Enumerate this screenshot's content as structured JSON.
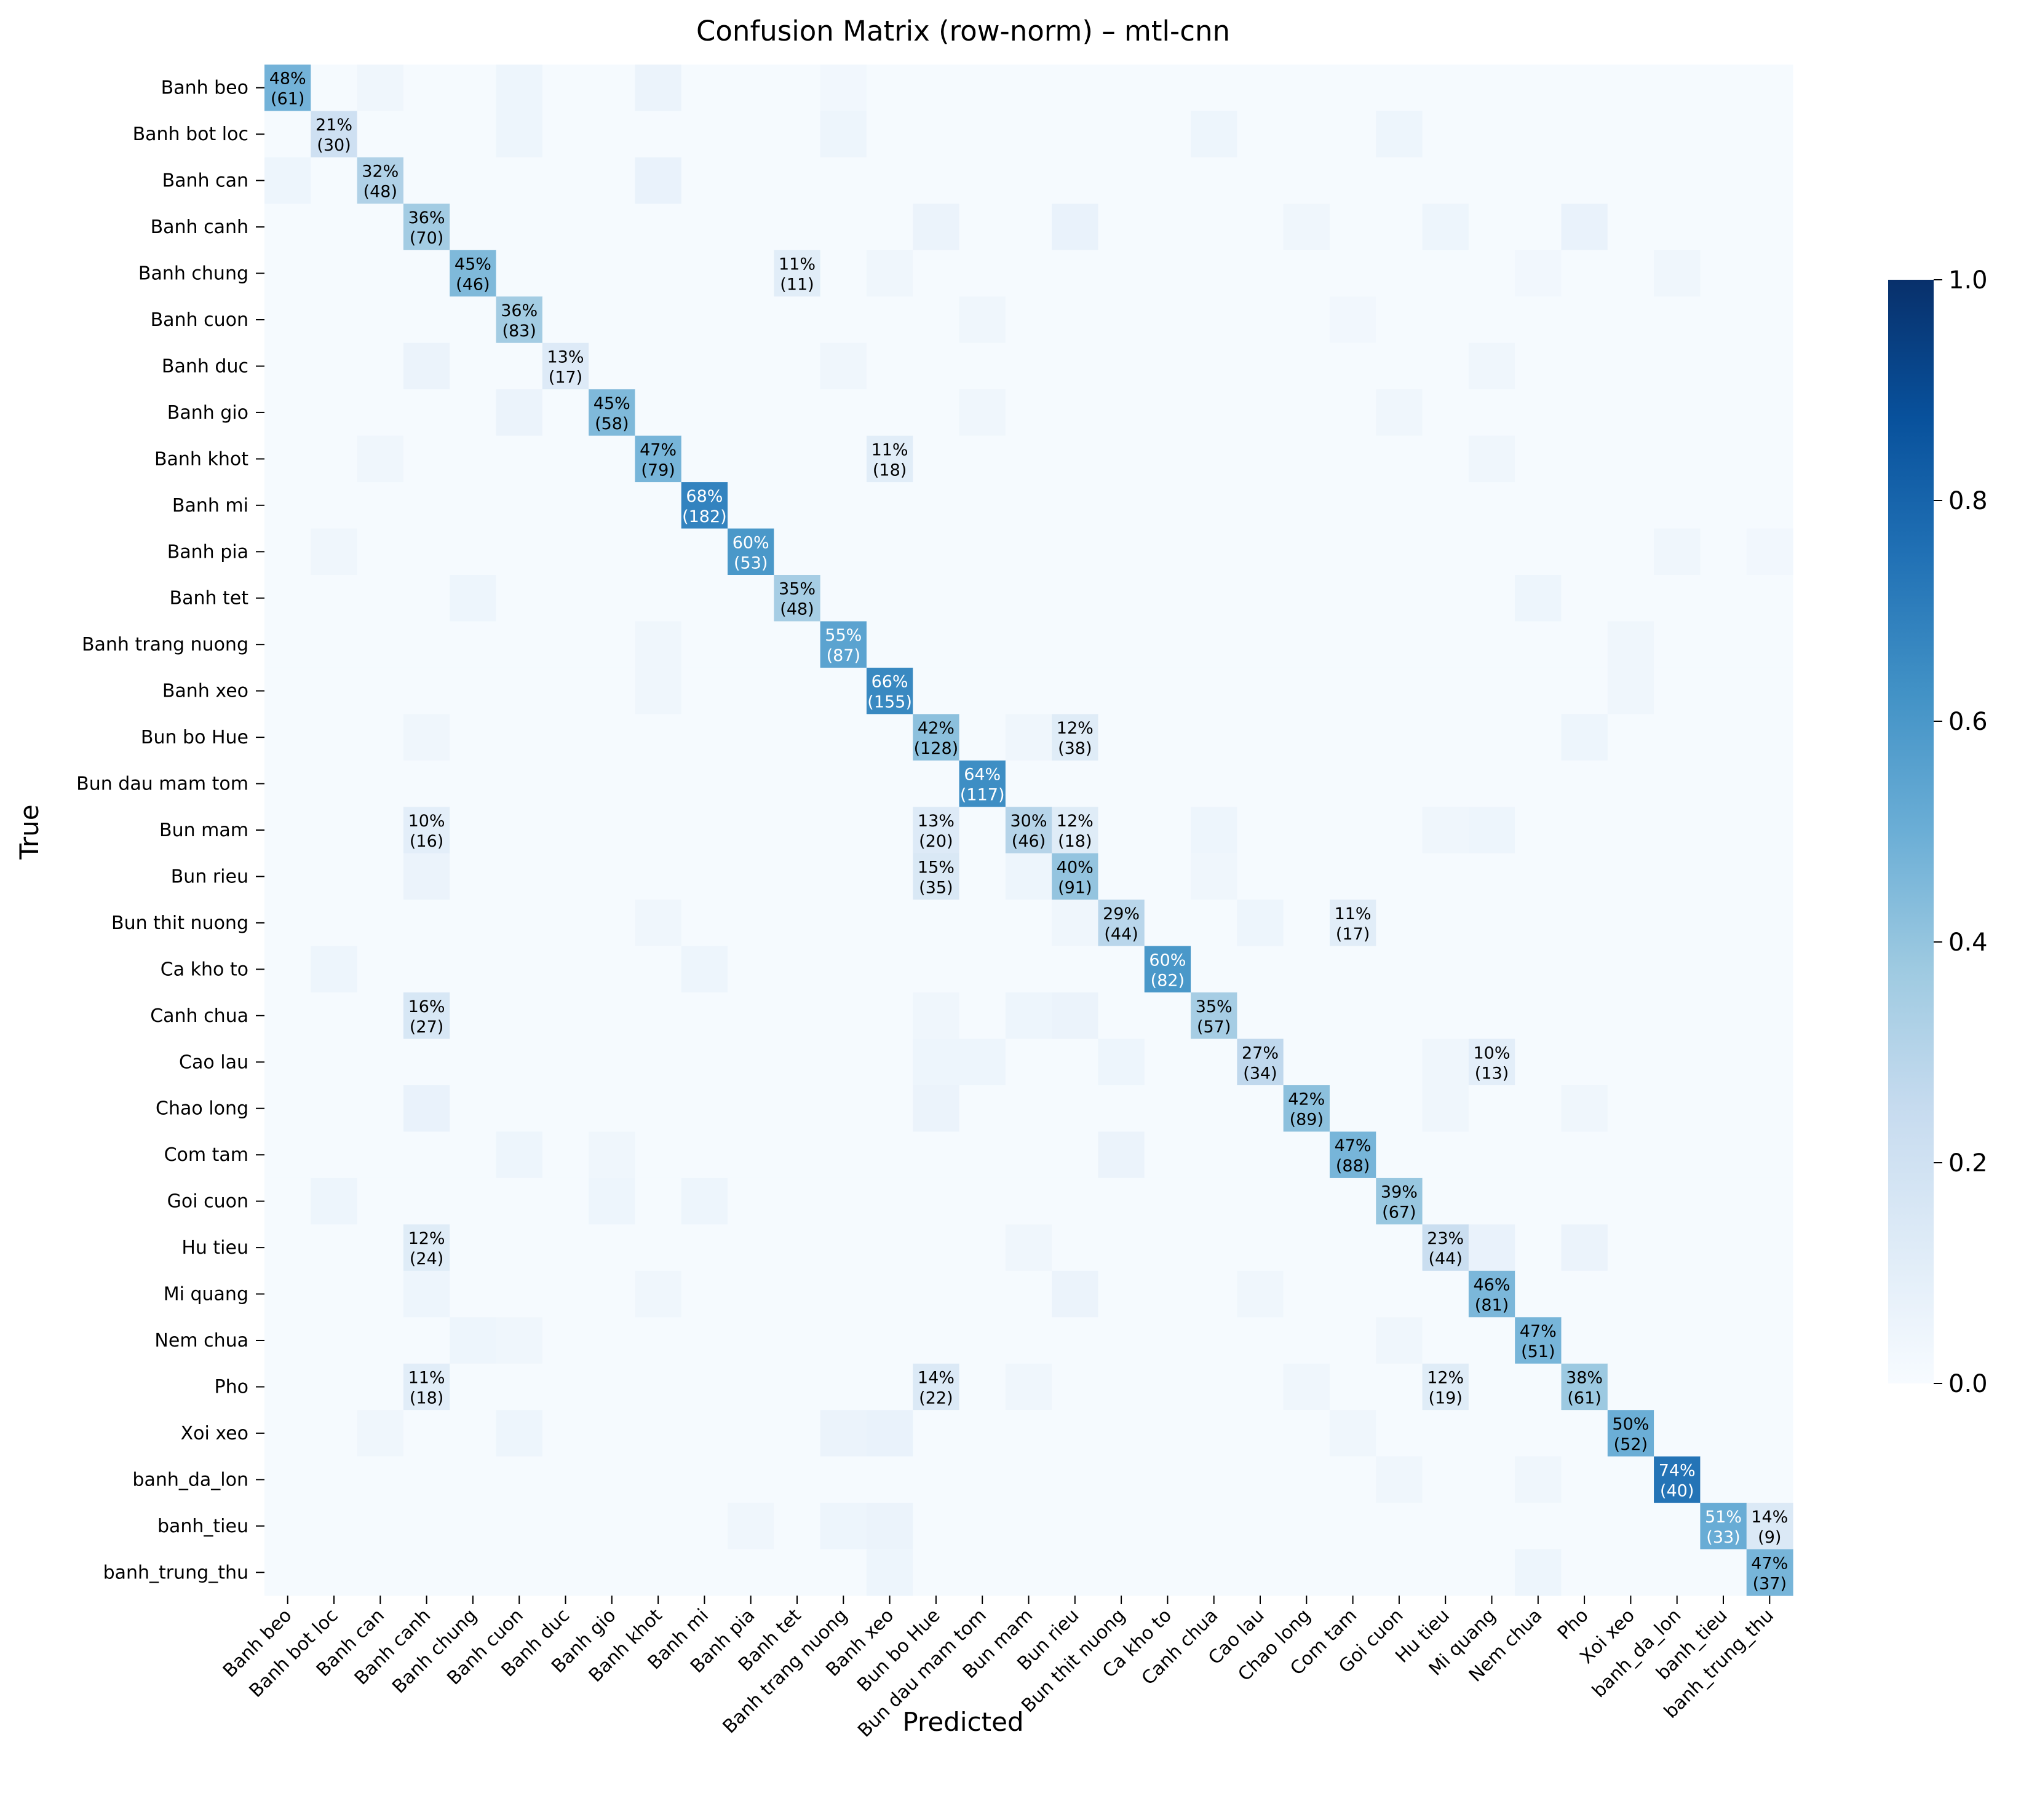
{
  "chart_data": {
    "type": "heatmap",
    "title": "Confusion Matrix (row-norm) – mtl-cnn",
    "xlabel": "Predicted",
    "ylabel": "True",
    "labels": [
      "Banh beo",
      "Banh bot loc",
      "Banh can",
      "Banh canh",
      "Banh chung",
      "Banh cuon",
      "Banh duc",
      "Banh gio",
      "Banh khot",
      "Banh mi",
      "Banh pia",
      "Banh tet",
      "Banh trang nuong",
      "Banh xeo",
      "Bun bo Hue",
      "Bun dau mam tom",
      "Bun mam",
      "Bun rieu",
      "Bun thit nuong",
      "Ca kho to",
      "Canh chua",
      "Cao lau",
      "Chao long",
      "Com tam",
      "Goi cuon",
      "Hu tieu",
      "Mi quang",
      "Nem chua",
      "Pho",
      "Xoi xeo",
      "banh_da_lon",
      "banh_tieu",
      "banh_trung_thu"
    ],
    "colorbar": {
      "colormap": "Blues",
      "min": 0.0,
      "max": 1.0,
      "ticks": [
        "0.0",
        "0.2",
        "0.4",
        "0.6",
        "0.8",
        "1.0"
      ]
    },
    "base_value": 0.01,
    "annotations": [
      {
        "row": 0,
        "col": 0,
        "pct": "48%",
        "count": "(61)",
        "value": 0.48
      },
      {
        "row": 1,
        "col": 1,
        "pct": "21%",
        "count": "(30)",
        "value": 0.21
      },
      {
        "row": 2,
        "col": 2,
        "pct": "32%",
        "count": "(48)",
        "value": 0.32
      },
      {
        "row": 3,
        "col": 3,
        "pct": "36%",
        "count": "(70)",
        "value": 0.36
      },
      {
        "row": 4,
        "col": 4,
        "pct": "45%",
        "count": "(46)",
        "value": 0.45
      },
      {
        "row": 4,
        "col": 11,
        "pct": "11%",
        "count": "(11)",
        "value": 0.11
      },
      {
        "row": 5,
        "col": 5,
        "pct": "36%",
        "count": "(83)",
        "value": 0.36
      },
      {
        "row": 6,
        "col": 6,
        "pct": "13%",
        "count": "(17)",
        "value": 0.13
      },
      {
        "row": 7,
        "col": 7,
        "pct": "45%",
        "count": "(58)",
        "value": 0.45
      },
      {
        "row": 8,
        "col": 8,
        "pct": "47%",
        "count": "(79)",
        "value": 0.47
      },
      {
        "row": 8,
        "col": 13,
        "pct": "11%",
        "count": "(18)",
        "value": 0.11
      },
      {
        "row": 9,
        "col": 9,
        "pct": "68%",
        "count": "(182)",
        "value": 0.68
      },
      {
        "row": 10,
        "col": 10,
        "pct": "60%",
        "count": "(53)",
        "value": 0.6
      },
      {
        "row": 11,
        "col": 11,
        "pct": "35%",
        "count": "(48)",
        "value": 0.35
      },
      {
        "row": 12,
        "col": 12,
        "pct": "55%",
        "count": "(87)",
        "value": 0.55
      },
      {
        "row": 13,
        "col": 13,
        "pct": "66%",
        "count": "(155)",
        "value": 0.66
      },
      {
        "row": 14,
        "col": 14,
        "pct": "42%",
        "count": "(128)",
        "value": 0.42
      },
      {
        "row": 14,
        "col": 17,
        "pct": "12%",
        "count": "(38)",
        "value": 0.12
      },
      {
        "row": 15,
        "col": 15,
        "pct": "64%",
        "count": "(117)",
        "value": 0.64
      },
      {
        "row": 16,
        "col": 3,
        "pct": "10%",
        "count": "(16)",
        "value": 0.1
      },
      {
        "row": 16,
        "col": 14,
        "pct": "13%",
        "count": "(20)",
        "value": 0.13
      },
      {
        "row": 16,
        "col": 16,
        "pct": "30%",
        "count": "(46)",
        "value": 0.3
      },
      {
        "row": 16,
        "col": 17,
        "pct": "12%",
        "count": "(18)",
        "value": 0.12
      },
      {
        "row": 17,
        "col": 14,
        "pct": "15%",
        "count": "(35)",
        "value": 0.15
      },
      {
        "row": 17,
        "col": 17,
        "pct": "40%",
        "count": "(91)",
        "value": 0.4
      },
      {
        "row": 18,
        "col": 18,
        "pct": "29%",
        "count": "(44)",
        "value": 0.29
      },
      {
        "row": 18,
        "col": 23,
        "pct": "11%",
        "count": "(17)",
        "value": 0.11
      },
      {
        "row": 19,
        "col": 19,
        "pct": "60%",
        "count": "(82)",
        "value": 0.6
      },
      {
        "row": 20,
        "col": 3,
        "pct": "16%",
        "count": "(27)",
        "value": 0.16
      },
      {
        "row": 20,
        "col": 20,
        "pct": "35%",
        "count": "(57)",
        "value": 0.35
      },
      {
        "row": 21,
        "col": 21,
        "pct": "27%",
        "count": "(34)",
        "value": 0.27
      },
      {
        "row": 21,
        "col": 26,
        "pct": "10%",
        "count": "(13)",
        "value": 0.1
      },
      {
        "row": 22,
        "col": 22,
        "pct": "42%",
        "count": "(89)",
        "value": 0.42
      },
      {
        "row": 23,
        "col": 23,
        "pct": "47%",
        "count": "(88)",
        "value": 0.47
      },
      {
        "row": 24,
        "col": 24,
        "pct": "39%",
        "count": "(67)",
        "value": 0.39
      },
      {
        "row": 25,
        "col": 3,
        "pct": "12%",
        "count": "(24)",
        "value": 0.12
      },
      {
        "row": 25,
        "col": 25,
        "pct": "23%",
        "count": "(44)",
        "value": 0.23
      },
      {
        "row": 26,
        "col": 26,
        "pct": "46%",
        "count": "(81)",
        "value": 0.46
      },
      {
        "row": 27,
        "col": 27,
        "pct": "47%",
        "count": "(51)",
        "value": 0.47
      },
      {
        "row": 28,
        "col": 3,
        "pct": "11%",
        "count": "(18)",
        "value": 0.11
      },
      {
        "row": 28,
        "col": 14,
        "pct": "14%",
        "count": "(22)",
        "value": 0.14
      },
      {
        "row": 28,
        "col": 25,
        "pct": "12%",
        "count": "(19)",
        "value": 0.12
      },
      {
        "row": 28,
        "col": 28,
        "pct": "38%",
        "count": "(61)",
        "value": 0.38
      },
      {
        "row": 29,
        "col": 29,
        "pct": "50%",
        "count": "(52)",
        "value": 0.5
      },
      {
        "row": 30,
        "col": 30,
        "pct": "74%",
        "count": "(40)",
        "value": 0.74
      },
      {
        "row": 31,
        "col": 31,
        "pct": "51%",
        "count": "(33)",
        "value": 0.51
      },
      {
        "row": 31,
        "col": 32,
        "pct": "14%",
        "count": "(9)",
        "value": 0.14
      },
      {
        "row": 32,
        "col": 32,
        "pct": "47%",
        "count": "(37)",
        "value": 0.47
      }
    ],
    "faint_cells": [
      {
        "row": 0,
        "col": 2,
        "value": 0.04
      },
      {
        "row": 0,
        "col": 5,
        "value": 0.05
      },
      {
        "row": 0,
        "col": 8,
        "value": 0.06
      },
      {
        "row": 0,
        "col": 12,
        "value": 0.03
      },
      {
        "row": 1,
        "col": 5,
        "value": 0.05
      },
      {
        "row": 1,
        "col": 12,
        "value": 0.05
      },
      {
        "row": 1,
        "col": 20,
        "value": 0.05
      },
      {
        "row": 1,
        "col": 24,
        "value": 0.05
      },
      {
        "row": 2,
        "col": 0,
        "value": 0.05
      },
      {
        "row": 2,
        "col": 8,
        "value": 0.07
      },
      {
        "row": 3,
        "col": 14,
        "value": 0.06
      },
      {
        "row": 3,
        "col": 17,
        "value": 0.07
      },
      {
        "row": 3,
        "col": 22,
        "value": 0.04
      },
      {
        "row": 3,
        "col": 25,
        "value": 0.05
      },
      {
        "row": 3,
        "col": 28,
        "value": 0.07
      },
      {
        "row": 4,
        "col": 13,
        "value": 0.04
      },
      {
        "row": 4,
        "col": 27,
        "value": 0.03
      },
      {
        "row": 4,
        "col": 30,
        "value": 0.04
      },
      {
        "row": 5,
        "col": 15,
        "value": 0.04
      },
      {
        "row": 5,
        "col": 23,
        "value": 0.03
      },
      {
        "row": 6,
        "col": 3,
        "value": 0.06
      },
      {
        "row": 6,
        "col": 12,
        "value": 0.04
      },
      {
        "row": 6,
        "col": 26,
        "value": 0.04
      },
      {
        "row": 7,
        "col": 5,
        "value": 0.06
      },
      {
        "row": 7,
        "col": 15,
        "value": 0.04
      },
      {
        "row": 7,
        "col": 24,
        "value": 0.04
      },
      {
        "row": 8,
        "col": 2,
        "value": 0.04
      },
      {
        "row": 8,
        "col": 26,
        "value": 0.04
      },
      {
        "row": 10,
        "col": 1,
        "value": 0.04
      },
      {
        "row": 10,
        "col": 30,
        "value": 0.04
      },
      {
        "row": 10,
        "col": 32,
        "value": 0.03
      },
      {
        "row": 11,
        "col": 4,
        "value": 0.05
      },
      {
        "row": 11,
        "col": 27,
        "value": 0.05
      },
      {
        "row": 12,
        "col": 8,
        "value": 0.04
      },
      {
        "row": 12,
        "col": 29,
        "value": 0.04
      },
      {
        "row": 13,
        "col": 8,
        "value": 0.04
      },
      {
        "row": 13,
        "col": 29,
        "value": 0.04
      },
      {
        "row": 14,
        "col": 3,
        "value": 0.04
      },
      {
        "row": 14,
        "col": 16,
        "value": 0.04
      },
      {
        "row": 14,
        "col": 28,
        "value": 0.05
      },
      {
        "row": 16,
        "col": 20,
        "value": 0.05
      },
      {
        "row": 16,
        "col": 25,
        "value": 0.04
      },
      {
        "row": 16,
        "col": 26,
        "value": 0.05
      },
      {
        "row": 17,
        "col": 3,
        "value": 0.06
      },
      {
        "row": 17,
        "col": 16,
        "value": 0.05
      },
      {
        "row": 17,
        "col": 20,
        "value": 0.04
      },
      {
        "row": 18,
        "col": 8,
        "value": 0.04
      },
      {
        "row": 18,
        "col": 17,
        "value": 0.04
      },
      {
        "row": 18,
        "col": 21,
        "value": 0.05
      },
      {
        "row": 19,
        "col": 1,
        "value": 0.05
      },
      {
        "row": 19,
        "col": 9,
        "value": 0.05
      },
      {
        "row": 20,
        "col": 14,
        "value": 0.04
      },
      {
        "row": 20,
        "col": 16,
        "value": 0.05
      },
      {
        "row": 20,
        "col": 17,
        "value": 0.06
      },
      {
        "row": 21,
        "col": 14,
        "value": 0.05
      },
      {
        "row": 21,
        "col": 15,
        "value": 0.05
      },
      {
        "row": 21,
        "col": 18,
        "value": 0.05
      },
      {
        "row": 21,
        "col": 25,
        "value": 0.04
      },
      {
        "row": 22,
        "col": 3,
        "value": 0.07
      },
      {
        "row": 22,
        "col": 14,
        "value": 0.06
      },
      {
        "row": 22,
        "col": 25,
        "value": 0.04
      },
      {
        "row": 22,
        "col": 28,
        "value": 0.04
      },
      {
        "row": 23,
        "col": 5,
        "value": 0.05
      },
      {
        "row": 23,
        "col": 7,
        "value": 0.04
      },
      {
        "row": 23,
        "col": 18,
        "value": 0.06
      },
      {
        "row": 24,
        "col": 1,
        "value": 0.05
      },
      {
        "row": 24,
        "col": 7,
        "value": 0.05
      },
      {
        "row": 24,
        "col": 9,
        "value": 0.05
      },
      {
        "row": 25,
        "col": 16,
        "value": 0.04
      },
      {
        "row": 25,
        "col": 26,
        "value": 0.07
      },
      {
        "row": 25,
        "col": 28,
        "value": 0.06
      },
      {
        "row": 26,
        "col": 3,
        "value": 0.05
      },
      {
        "row": 26,
        "col": 8,
        "value": 0.04
      },
      {
        "row": 26,
        "col": 17,
        "value": 0.06
      },
      {
        "row": 26,
        "col": 21,
        "value": 0.04
      },
      {
        "row": 27,
        "col": 4,
        "value": 0.05
      },
      {
        "row": 27,
        "col": 5,
        "value": 0.04
      },
      {
        "row": 27,
        "col": 24,
        "value": 0.04
      },
      {
        "row": 28,
        "col": 16,
        "value": 0.04
      },
      {
        "row": 28,
        "col": 22,
        "value": 0.04
      },
      {
        "row": 29,
        "col": 2,
        "value": 0.04
      },
      {
        "row": 29,
        "col": 5,
        "value": 0.05
      },
      {
        "row": 29,
        "col": 12,
        "value": 0.06
      },
      {
        "row": 29,
        "col": 13,
        "value": 0.07
      },
      {
        "row": 29,
        "col": 23,
        "value": 0.04
      },
      {
        "row": 30,
        "col": 24,
        "value": 0.04
      },
      {
        "row": 30,
        "col": 27,
        "value": 0.04
      },
      {
        "row": 31,
        "col": 10,
        "value": 0.04
      },
      {
        "row": 31,
        "col": 12,
        "value": 0.05
      },
      {
        "row": 31,
        "col": 13,
        "value": 0.06
      },
      {
        "row": 32,
        "col": 13,
        "value": 0.05
      },
      {
        "row": 32,
        "col": 27,
        "value": 0.05
      }
    ]
  }
}
